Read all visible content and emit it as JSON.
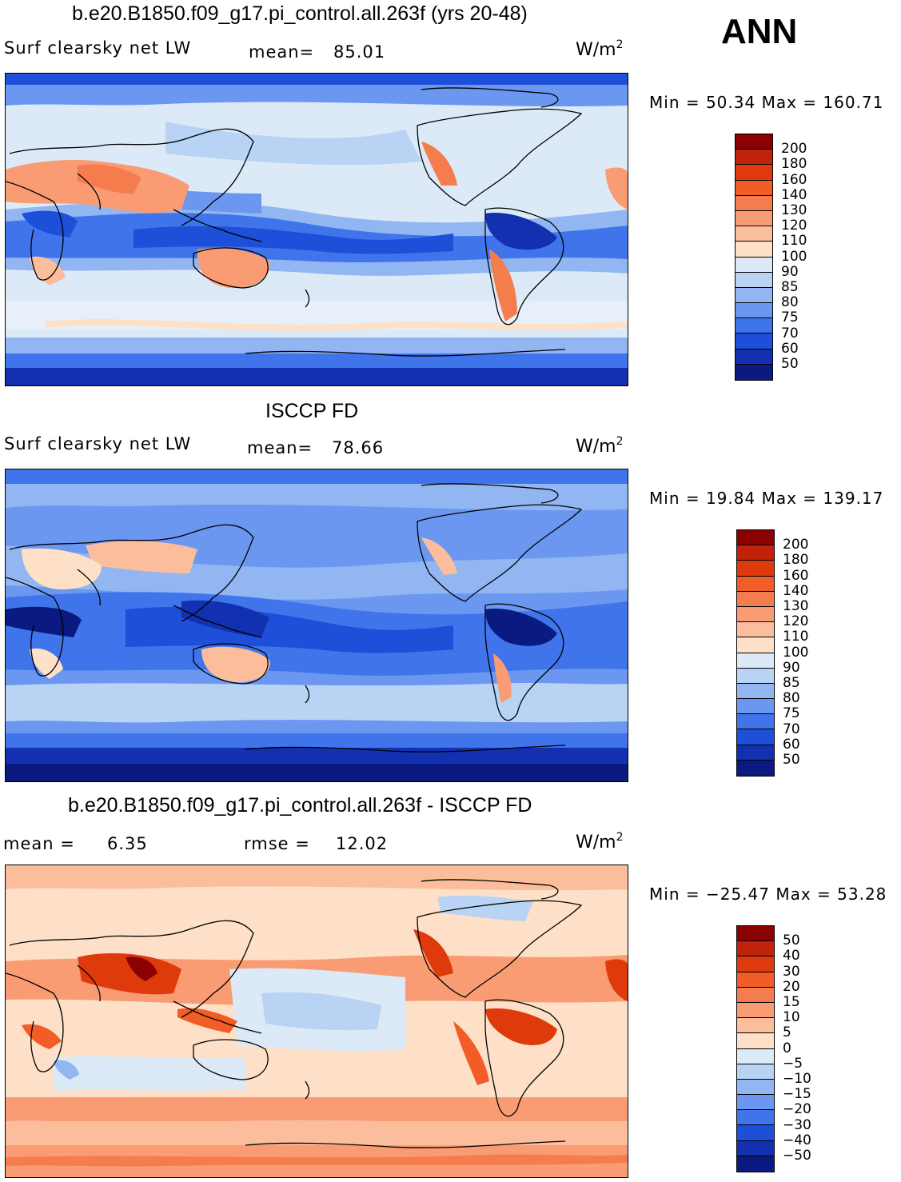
{
  "season": "ANN",
  "panels": [
    {
      "title": "b.e20.B1850.f09_g17.pi_control.all.263f (yrs 20-48)",
      "left_label": "Surf clearsky net LW",
      "mid_label": "mean=",
      "mid_value": "85.01",
      "units": "W/m",
      "units_sup": "2",
      "stats": "Min =  50.34 Max = 160.71",
      "levels": [
        "200",
        "180",
        "160",
        "140",
        "130",
        "120",
        "110",
        "100",
        "90",
        "85",
        "80",
        "75",
        "70",
        "60",
        "50"
      ],
      "colors": [
        "#8b0000",
        "#c1220a",
        "#de3a0c",
        "#f25c26",
        "#f57d4d",
        "#f99c74",
        "#fbbd9c",
        "#fde0c7",
        "#dceaf7",
        "#b8d3f4",
        "#92b6f2",
        "#6b97f0",
        "#3f74ea",
        "#1d4fd8",
        "#1230b0",
        "#0a1a80"
      ]
    },
    {
      "title": "ISCCP FD",
      "left_label": "Surf clearsky net LW",
      "mid_label": "mean=",
      "mid_value": "78.66",
      "units": "W/m",
      "units_sup": "2",
      "stats": "Min =  19.84 Max = 139.17",
      "levels": [
        "200",
        "180",
        "160",
        "140",
        "130",
        "120",
        "110",
        "100",
        "90",
        "85",
        "80",
        "75",
        "70",
        "60",
        "50"
      ],
      "colors": [
        "#8b0000",
        "#c1220a",
        "#de3a0c",
        "#f25c26",
        "#f57d4d",
        "#f99c74",
        "#fbbd9c",
        "#fde0c7",
        "#dceaf7",
        "#b8d3f4",
        "#92b6f2",
        "#6b97f0",
        "#3f74ea",
        "#1d4fd8",
        "#1230b0",
        "#0a1a80"
      ]
    },
    {
      "title": "b.e20.B1850.f09_g17.pi_control.all.263f - ISCCP FD",
      "left_label": "mean =",
      "left_value": "6.35",
      "mid_label": "rmse =",
      "mid_value": "12.02",
      "units": "W/m",
      "units_sup": "2",
      "stats": "Min = −25.47 Max =  53.28",
      "levels": [
        "50",
        "40",
        "30",
        "20",
        "15",
        "10",
        "5",
        "0",
        "−5",
        "−10",
        "−15",
        "−20",
        "−30",
        "−40",
        "−50"
      ],
      "colors": [
        "#8b0000",
        "#c1220a",
        "#de3a0c",
        "#f25c26",
        "#f57d4d",
        "#f99c74",
        "#fbbd9c",
        "#fde0c7",
        "#dceaf7",
        "#b8d3f4",
        "#92b6f2",
        "#6b97f0",
        "#3f74ea",
        "#1d4fd8",
        "#1230b0",
        "#0a1a80"
      ]
    }
  ]
}
